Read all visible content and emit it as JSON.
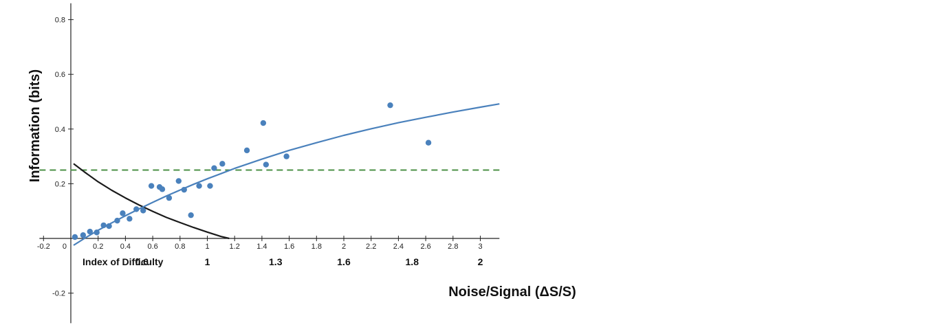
{
  "chart_data": {
    "type": "scatter",
    "xlabel": "Noise/Signal (ΔS/S)",
    "ylabel": "Information  (bits)",
    "xlim": [
      -0.23,
      3.14
    ],
    "ylim": [
      -0.31,
      0.86
    ],
    "x_ticks": [
      "-0.2",
      "0",
      "0.2",
      "0.4",
      "0.6",
      "0.8",
      "1",
      "1.2",
      "1.4",
      "1.6",
      "1.8",
      "2",
      "2.2",
      "2.4",
      "2.6",
      "2.8",
      "3"
    ],
    "y_ticks": [
      "-0.2",
      "0.2",
      "0.4",
      "0.6",
      "0.8"
    ],
    "index_of_difficulty": {
      "label": "Index of Difficulty",
      "ticks": [
        {
          "x": 0.52,
          "label": "0.6"
        },
        {
          "x": 1.0,
          "label": "1"
        },
        {
          "x": 1.5,
          "label": "1.3"
        },
        {
          "x": 2.0,
          "label": "1.6"
        },
        {
          "x": 2.5,
          "label": "1.8"
        },
        {
          "x": 3.0,
          "label": "2"
        }
      ]
    },
    "points": [
      {
        "x": 0.03,
        "y": 0.005
      },
      {
        "x": 0.09,
        "y": 0.012
      },
      {
        "x": 0.14,
        "y": 0.025
      },
      {
        "x": 0.19,
        "y": 0.022
      },
      {
        "x": 0.24,
        "y": 0.048
      },
      {
        "x": 0.28,
        "y": 0.045
      },
      {
        "x": 0.34,
        "y": 0.065
      },
      {
        "x": 0.38,
        "y": 0.092
      },
      {
        "x": 0.43,
        "y": 0.072
      },
      {
        "x": 0.48,
        "y": 0.107
      },
      {
        "x": 0.53,
        "y": 0.102
      },
      {
        "x": 0.59,
        "y": 0.192
      },
      {
        "x": 0.65,
        "y": 0.188
      },
      {
        "x": 0.67,
        "y": 0.18
      },
      {
        "x": 0.72,
        "y": 0.148
      },
      {
        "x": 0.79,
        "y": 0.21
      },
      {
        "x": 0.83,
        "y": 0.178
      },
      {
        "x": 0.88,
        "y": 0.085
      },
      {
        "x": 0.94,
        "y": 0.192
      },
      {
        "x": 1.02,
        "y": 0.192
      },
      {
        "x": 1.05,
        "y": 0.257
      },
      {
        "x": 1.11,
        "y": 0.273
      },
      {
        "x": 1.29,
        "y": 0.322
      },
      {
        "x": 1.41,
        "y": 0.422
      },
      {
        "x": 1.43,
        "y": 0.27
      },
      {
        "x": 1.58,
        "y": 0.3
      },
      {
        "x": 2.34,
        "y": 0.487
      },
      {
        "x": 2.62,
        "y": 0.35
      }
    ],
    "increasing_curve": {
      "color": "#4a81bc",
      "x": [
        0.02,
        0.1,
        0.2,
        0.3,
        0.4,
        0.5,
        0.6,
        0.7,
        0.8,
        0.9,
        1.0,
        1.1,
        1.2,
        1.3,
        1.4,
        1.5,
        1.6,
        1.8,
        2.0,
        2.2,
        2.4,
        2.6,
        2.8,
        3.0,
        3.14
      ],
      "y": [
        -0.025,
        0.0,
        0.03,
        0.057,
        0.083,
        0.108,
        0.132,
        0.155,
        0.177,
        0.198,
        0.218,
        0.237,
        0.256,
        0.273,
        0.29,
        0.306,
        0.322,
        0.35,
        0.377,
        0.401,
        0.423,
        0.443,
        0.462,
        0.48,
        0.492
      ]
    },
    "decreasing_curve": {
      "color": "#1a1a1a",
      "x": [
        0.02,
        0.1,
        0.2,
        0.3,
        0.4,
        0.5,
        0.6,
        0.7,
        0.8,
        0.9,
        1.0,
        1.1,
        1.16
      ],
      "y": [
        0.273,
        0.243,
        0.207,
        0.176,
        0.148,
        0.122,
        0.099,
        0.077,
        0.058,
        0.04,
        0.023,
        0.007,
        0.0
      ]
    },
    "reference_line": {
      "y": 0.25,
      "color": "#4a8f44",
      "style": "dashed"
    },
    "point_color": "#4a81bc",
    "grid": false
  }
}
